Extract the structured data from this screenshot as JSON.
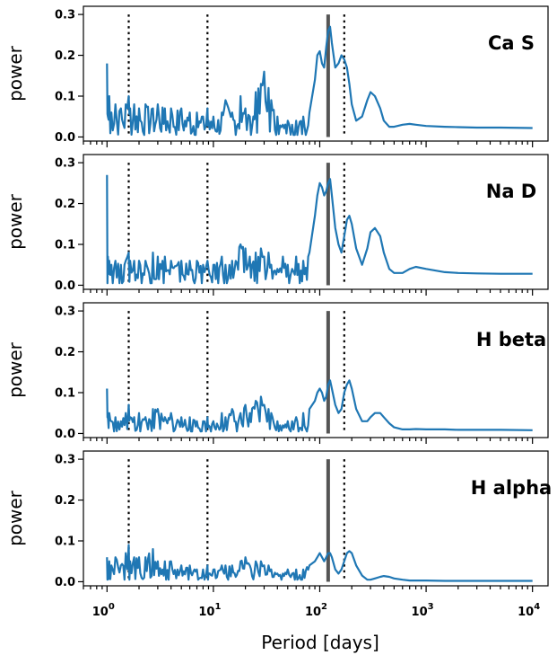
{
  "chart_data": {
    "type": "line",
    "shared_x": true,
    "xlabel": "Period [days]",
    "ylabel": "power",
    "x_scale": "log",
    "xlim": [
      0.6,
      14000
    ],
    "x_ticks": [
      {
        "value": 1,
        "base": "10",
        "exp": "0"
      },
      {
        "value": 10,
        "base": "10",
        "exp": "1"
      },
      {
        "value": 100,
        "base": "10",
        "exp": "2"
      },
      {
        "value": 1000,
        "base": "10",
        "exp": "3"
      },
      {
        "value": 10000,
        "base": "10",
        "exp": "4"
      }
    ],
    "y_ticks": [
      "0.0",
      "0.1",
      "0.2",
      "0.3"
    ],
    "ylim": [
      -0.01,
      0.32
    ],
    "reference_lines": {
      "solid": 120,
      "dotted": [
        1.6,
        8.8,
        170
      ]
    },
    "colors": {
      "series": "#1f77b4",
      "solid_line": "#555555",
      "dotted_line": "#000000"
    },
    "panels": [
      {
        "title": "Ca S",
        "series": {
          "x": [
            1,
            1.02,
            1.05,
            1.1,
            1.2,
            1.35,
            1.5,
            1.6,
            1.65,
            1.8,
            2,
            2.3,
            2.7,
            3,
            3.5,
            4,
            5,
            6,
            7,
            8,
            8.8,
            9,
            10,
            12,
            13,
            15,
            18,
            20,
            22,
            25,
            28,
            30,
            33,
            35,
            40,
            45,
            50,
            55,
            60,
            70,
            80,
            90,
            95,
            100,
            105,
            110,
            115,
            120,
            125,
            130,
            140,
            150,
            160,
            170,
            180,
            190,
            200,
            220,
            250,
            280,
            300,
            330,
            370,
            400,
            450,
            500,
            600,
            700,
            800,
            1000,
            1500,
            2000,
            3000,
            5000,
            10000
          ],
          "y": [
            0.18,
            0.05,
            0.1,
            0.06,
            0.08,
            0.07,
            0.08,
            0.1,
            0.07,
            0.08,
            0.07,
            0.08,
            0.07,
            0.08,
            0.07,
            0.07,
            0.07,
            0.06,
            0.06,
            0.05,
            0.07,
            0.04,
            0.05,
            0.06,
            0.09,
            0.06,
            0.1,
            0.07,
            0.05,
            0.11,
            0.13,
            0.16,
            0.12,
            0.09,
            0.05,
            0.03,
            0.04,
            0.03,
            0.04,
            0.05,
            0.06,
            0.14,
            0.2,
            0.21,
            0.18,
            0.17,
            0.22,
            0.26,
            0.27,
            0.23,
            0.17,
            0.18,
            0.2,
            0.19,
            0.17,
            0.13,
            0.08,
            0.04,
            0.05,
            0.09,
            0.11,
            0.1,
            0.07,
            0.04,
            0.025,
            0.025,
            0.03,
            0.032,
            0.03,
            0.027,
            0.025,
            0.024,
            0.023,
            0.023,
            0.022
          ]
        }
      },
      {
        "title": "Na D",
        "series": {
          "x": [
            1,
            1.02,
            1.05,
            1.1,
            1.2,
            1.35,
            1.5,
            1.6,
            1.65,
            1.8,
            2,
            2.3,
            2.7,
            3,
            3.5,
            4,
            5,
            6,
            7,
            8,
            8.8,
            9,
            10,
            12,
            13,
            15,
            18,
            20,
            22,
            25,
            28,
            30,
            33,
            35,
            40,
            45,
            50,
            55,
            60,
            70,
            80,
            90,
            95,
            100,
            105,
            110,
            115,
            120,
            125,
            130,
            140,
            150,
            160,
            170,
            180,
            190,
            200,
            220,
            250,
            280,
            300,
            330,
            370,
            400,
            450,
            500,
            600,
            700,
            800,
            1000,
            1500,
            2000,
            3000,
            5000,
            10000
          ],
          "y": [
            0.27,
            0.07,
            0.06,
            0.05,
            0.06,
            0.05,
            0.06,
            0.08,
            0.06,
            0.06,
            0.06,
            0.06,
            0.08,
            0.07,
            0.07,
            0.06,
            0.06,
            0.06,
            0.06,
            0.05,
            0.06,
            0.04,
            0.05,
            0.07,
            0.05,
            0.06,
            0.1,
            0.09,
            0.07,
            0.08,
            0.09,
            0.07,
            0.08,
            0.05,
            0.04,
            0.07,
            0.05,
            0.04,
            0.07,
            0.06,
            0.08,
            0.17,
            0.22,
            0.25,
            0.24,
            0.22,
            0.23,
            0.25,
            0.26,
            0.22,
            0.14,
            0.1,
            0.08,
            0.12,
            0.16,
            0.17,
            0.15,
            0.09,
            0.05,
            0.09,
            0.13,
            0.14,
            0.12,
            0.08,
            0.04,
            0.03,
            0.03,
            0.04,
            0.045,
            0.04,
            0.032,
            0.03,
            0.029,
            0.028,
            0.028
          ]
        }
      },
      {
        "title": "H beta",
        "series": {
          "x": [
            1,
            1.02,
            1.05,
            1.1,
            1.2,
            1.35,
            1.5,
            1.6,
            1.65,
            1.8,
            2,
            2.3,
            2.7,
            3,
            3.5,
            4,
            5,
            6,
            7,
            8,
            8.8,
            9,
            10,
            12,
            13,
            15,
            18,
            20,
            22,
            25,
            28,
            30,
            33,
            35,
            40,
            45,
            50,
            55,
            60,
            70,
            80,
            90,
            95,
            100,
            105,
            110,
            115,
            120,
            125,
            130,
            140,
            150,
            160,
            170,
            180,
            190,
            200,
            220,
            250,
            280,
            300,
            330,
            370,
            400,
            450,
            500,
            600,
            700,
            800,
            1000,
            1500,
            2000,
            3000,
            5000,
            10000
          ],
          "y": [
            0.11,
            0.04,
            0.05,
            0.03,
            0.04,
            0.03,
            0.05,
            0.07,
            0.04,
            0.04,
            0.05,
            0.04,
            0.06,
            0.06,
            0.04,
            0.05,
            0.04,
            0.04,
            0.03,
            0.03,
            0.04,
            0.02,
            0.03,
            0.05,
            0.04,
            0.06,
            0.05,
            0.07,
            0.05,
            0.08,
            0.09,
            0.07,
            0.06,
            0.05,
            0.03,
            0.02,
            0.03,
            0.03,
            0.04,
            0.05,
            0.06,
            0.08,
            0.1,
            0.11,
            0.1,
            0.08,
            0.09,
            0.12,
            0.13,
            0.11,
            0.07,
            0.05,
            0.06,
            0.1,
            0.12,
            0.13,
            0.11,
            0.06,
            0.03,
            0.03,
            0.04,
            0.05,
            0.05,
            0.04,
            0.025,
            0.015,
            0.01,
            0.01,
            0.011,
            0.01,
            0.01,
            0.009,
            0.009,
            0.009,
            0.008
          ]
        }
      },
      {
        "title": "H alpha",
        "series": {
          "x": [
            1,
            1.02,
            1.05,
            1.1,
            1.2,
            1.35,
            1.5,
            1.6,
            1.65,
            1.8,
            2,
            2.3,
            2.7,
            3,
            3.5,
            4,
            5,
            6,
            7,
            8,
            8.8,
            9,
            10,
            12,
            13,
            15,
            18,
            20,
            22,
            25,
            28,
            30,
            33,
            35,
            40,
            45,
            50,
            55,
            60,
            70,
            80,
            90,
            95,
            100,
            105,
            110,
            115,
            120,
            125,
            130,
            140,
            150,
            160,
            170,
            180,
            190,
            200,
            220,
            250,
            280,
            300,
            330,
            370,
            400,
            450,
            500,
            600,
            700,
            800,
            1000,
            1500,
            2000,
            3000,
            5000,
            10000
          ],
          "y": [
            0.06,
            0.03,
            0.05,
            0.04,
            0.06,
            0.04,
            0.07,
            0.09,
            0.05,
            0.06,
            0.06,
            0.06,
            0.08,
            0.05,
            0.05,
            0.05,
            0.04,
            0.04,
            0.03,
            0.03,
            0.04,
            0.02,
            0.03,
            0.04,
            0.04,
            0.04,
            0.05,
            0.06,
            0.04,
            0.05,
            0.05,
            0.04,
            0.04,
            0.03,
            0.02,
            0.02,
            0.03,
            0.02,
            0.03,
            0.03,
            0.04,
            0.05,
            0.06,
            0.07,
            0.06,
            0.05,
            0.06,
            0.07,
            0.07,
            0.06,
            0.03,
            0.02,
            0.03,
            0.05,
            0.07,
            0.075,
            0.07,
            0.04,
            0.015,
            0.005,
            0.005,
            0.008,
            0.012,
            0.014,
            0.012,
            0.008,
            0.005,
            0.003,
            0.003,
            0.003,
            0.002,
            0.002,
            0.002,
            0.002,
            0.002
          ]
        }
      }
    ]
  }
}
